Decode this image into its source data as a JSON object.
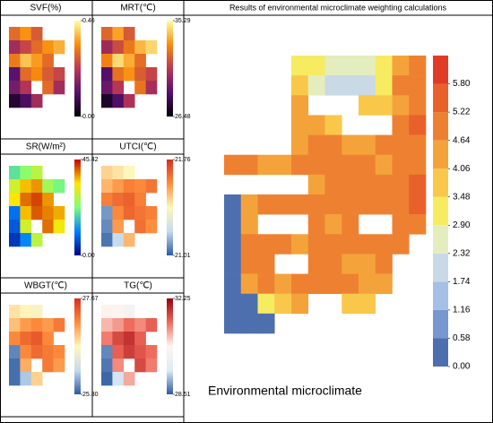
{
  "chart_data": [
    {
      "type": "heatmap",
      "title": "SVF(%)",
      "clim": [
        0,
        0.46
      ],
      "cticks": [
        {
          "value": 0,
          "label": "0.00"
        },
        0.46
      ],
      "colors": [
        "#000004",
        "#56106e",
        "#bb3754",
        "#f98c0a",
        "#fcffa4"
      ],
      "values": [
        [
          0.3,
          0.35,
          0.28,
          null,
          null
        ],
        [
          0.2,
          0.25,
          0.3,
          0.35,
          0.38
        ],
        [
          0.32,
          0.4,
          0.36,
          0.3,
          null
        ],
        [
          0.12,
          0.3,
          0.34,
          0.28,
          0.25
        ],
        [
          0.15,
          0.22,
          null,
          0.3,
          0.2
        ],
        [
          0.05,
          0.1,
          0.2,
          null,
          null
        ]
      ]
    },
    {
      "type": "heatmap",
      "title": "MRT(℃)",
      "clim": [
        26.48,
        35.29
      ],
      "cticks": [
        26.48,
        35.29
      ],
      "colors": [
        "#000004",
        "#56106e",
        "#bb3754",
        "#f98c0a",
        "#fcffa4"
      ],
      "values": [
        [
          32.1,
          33.5,
          31.8,
          null,
          null
        ],
        [
          30.2,
          31.4,
          32.6,
          33.9,
          34.5
        ],
        [
          32.8,
          34.6,
          33.7,
          32.3,
          null
        ],
        [
          28.6,
          32.4,
          33.2,
          31.9,
          31.2
        ],
        [
          29.1,
          30.8,
          null,
          32.5,
          30.4
        ],
        [
          27.2,
          28.5,
          30.6,
          null,
          null
        ]
      ]
    },
    {
      "type": "heatmap",
      "title": "SR(W/m²)",
      "clim": [
        0,
        45.42
      ],
      "cticks": [
        {
          "value": 0,
          "label": "0.00"
        },
        45.42
      ],
      "colors": [
        "#00007f",
        "#0080ff",
        "#7dff7a",
        "#ffe600",
        "#c40000"
      ],
      "values": [
        [
          20,
          24,
          28,
          null,
          null
        ],
        [
          30,
          36,
          38,
          26,
          22
        ],
        [
          34,
          40,
          42,
          38,
          null
        ],
        [
          10,
          36,
          41,
          39,
          37
        ],
        [
          8,
          30,
          null,
          40,
          33
        ],
        [
          5,
          12,
          28,
          null,
          null
        ]
      ]
    },
    {
      "type": "heatmap",
      "title": "UTCI(℃)",
      "clim": [
        21.01,
        21.76
      ],
      "cticks": [
        21.01,
        21.76
      ],
      "colors": [
        "#2c5aa0",
        "#c6dbef",
        "#fff7bc",
        "#fd8d3c",
        "#d7301f"
      ],
      "values": [
        [
          21.45,
          21.42,
          21.38,
          null,
          null
        ],
        [
          21.5,
          21.55,
          21.6,
          21.58,
          21.62
        ],
        [
          21.6,
          21.64,
          21.66,
          21.6,
          null
        ],
        [
          21.1,
          21.58,
          21.65,
          21.62,
          21.6
        ],
        [
          21.08,
          21.55,
          null,
          21.63,
          21.57
        ],
        [
          21.05,
          21.2,
          21.5,
          null,
          null
        ]
      ]
    },
    {
      "type": "heatmap",
      "title": "WBGT(℃)",
      "clim": [
        25.3,
        27.67
      ],
      "cticks": [
        {
          "value": 25.3,
          "label": "25.30"
        },
        27.67
      ],
      "colors": [
        "#2c5aa0",
        "#c6dbef",
        "#fff7bc",
        "#fd8d3c",
        "#d7301f"
      ],
      "values": [
        [
          26.6,
          26.5,
          26.4,
          null,
          null
        ],
        [
          26.8,
          27.0,
          27.1,
          27.0,
          27.2
        ],
        [
          27.1,
          27.3,
          27.4,
          27.1,
          null
        ],
        [
          25.5,
          27.1,
          27.3,
          27.2,
          27.1
        ],
        [
          25.4,
          26.9,
          null,
          27.2,
          27.0
        ],
        [
          25.4,
          25.8,
          26.7,
          null,
          null
        ]
      ]
    },
    {
      "type": "heatmap",
      "title": "TG(℃)",
      "clim": [
        28.51,
        32.25
      ],
      "cticks": [
        28.51,
        32.25
      ],
      "colors": [
        "#2c5aa0",
        "#deebf7",
        "#fff5f0",
        "#ef6a5a",
        "#99000d"
      ],
      "values": [
        [
          30.4,
          30.3,
          30.1,
          null,
          null
        ],
        [
          30.8,
          31.0,
          31.3,
          31.1,
          31.4
        ],
        [
          31.2,
          31.6,
          31.8,
          31.4,
          null
        ],
        [
          28.8,
          31.4,
          31.7,
          31.5,
          31.3
        ],
        [
          28.7,
          31.1,
          null,
          31.6,
          31.2
        ],
        [
          28.6,
          29.4,
          30.9,
          null,
          null
        ]
      ]
    },
    {
      "type": "heatmap",
      "title": "Results of environmental microclimate weighting calculations",
      "label": "Environmental microclimate",
      "clim": [
        0,
        6.38
      ],
      "cticks": [
        {
          "value": 0,
          "label": "0.00"
        },
        0.58,
        1.16,
        1.74,
        2.32,
        {
          "value": 2.9,
          "label": "2.90"
        },
        3.48,
        4.06,
        4.64,
        5.22,
        {
          "value": 5.8,
          "label": "5.80"
        }
      ],
      "colors": [
        "#4e6fae",
        "#7896cf",
        "#a5bfe6",
        "#c9d9e6",
        "#e4edbe",
        "#f7eb62",
        "#f9c84a",
        "#f4a33b",
        "#ee8131",
        "#e9612a",
        "#e23b25"
      ],
      "values": [
        [
          null,
          null,
          null,
          null,
          3.2,
          3.0,
          2.6,
          2.5,
          2.8,
          3.1,
          4.6,
          5.0
        ],
        [
          null,
          null,
          null,
          null,
          3.6,
          2.4,
          2.2,
          2.0,
          2.3,
          3.3,
          4.8,
          5.2
        ],
        [
          null,
          null,
          null,
          null,
          4.2,
          null,
          null,
          null,
          3.8,
          4.0,
          4.6,
          5.1
        ],
        [
          null,
          null,
          null,
          null,
          4.4,
          4.2,
          3.9,
          null,
          null,
          null,
          4.9,
          5.3
        ],
        [
          null,
          null,
          null,
          null,
          4.6,
          5.0,
          4.8,
          4.4,
          4.5,
          4.7,
          5.0,
          5.2
        ],
        [
          4.8,
          5.0,
          4.6,
          4.4,
          4.7,
          5.1,
          5.0,
          4.8,
          4.9,
          4.6,
          4.8,
          5.1
        ],
        [
          null,
          null,
          null,
          null,
          null,
          4.6,
          4.8,
          4.7,
          4.9,
          5.0,
          5.2,
          5.4
        ],
        [
          0.4,
          4.6,
          4.8,
          5.0,
          4.9,
          4.7,
          5.0,
          5.1,
          4.8,
          4.9,
          5.1,
          5.3
        ],
        [
          0.4,
          4.4,
          null,
          null,
          null,
          4.8,
          4.6,
          4.9,
          null,
          null,
          4.8,
          5.0
        ],
        [
          0.4,
          4.9,
          5.0,
          4.8,
          4.6,
          4.9,
          5.1,
          5.0,
          4.7,
          4.8,
          5.0,
          null
        ],
        [
          0.4,
          4.7,
          4.9,
          null,
          null,
          4.7,
          4.8,
          4.6,
          4.5,
          4.9,
          null,
          null
        ],
        [
          0.4,
          4.5,
          4.8,
          4.6,
          4.9,
          5.0,
          4.7,
          4.8,
          4.4,
          4.6,
          null,
          null
        ],
        [
          0.4,
          0.5,
          3.3,
          3.6,
          4.3,
          null,
          null,
          4.0,
          3.9,
          null,
          null,
          null
        ],
        [
          0.4,
          0.4,
          0.5,
          null,
          null,
          null,
          null,
          null,
          null,
          null,
          null,
          null
        ]
      ]
    }
  ]
}
